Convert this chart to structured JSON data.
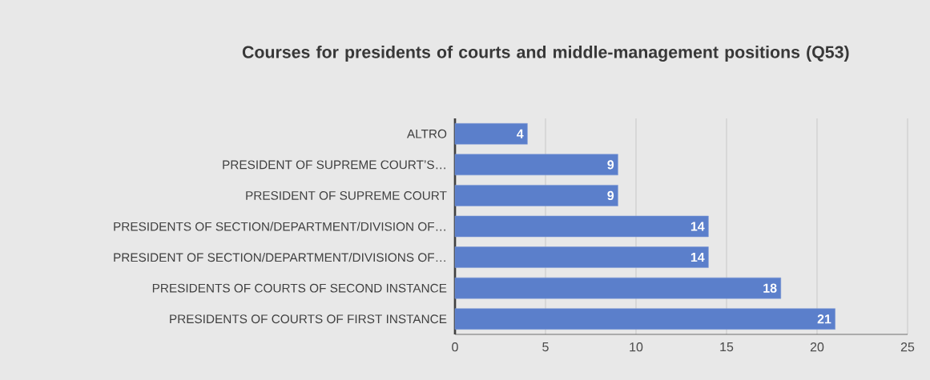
{
  "chart_data": {
    "type": "bar",
    "orientation": "horizontal",
    "title": "Courses for presidents of courts and middle-management positions (Q53)",
    "categories": [
      "ALTRO",
      "PRESIDENT OF SUPREME COURT’S…",
      "PRESIDENT OF SUPREME COURT",
      "PRESIDENTS OF SECTION/DEPARTMENT/DIVISION OF…",
      "PRESIDENT OF SECTION/DEPARTMENT/DIVISIONS OF…",
      "PRESIDENTS OF COURTS OF SECOND INSTANCE",
      "PRESIDENTS OF COURTS OF FIRST INSTANCE"
    ],
    "values": [
      4,
      9,
      9,
      14,
      14,
      18,
      21
    ],
    "color": "#5b7fcb",
    "xlim": [
      0,
      25
    ],
    "xticks": [
      0,
      5,
      10,
      15,
      20,
      25
    ],
    "grid": "x",
    "data_labels": true
  }
}
